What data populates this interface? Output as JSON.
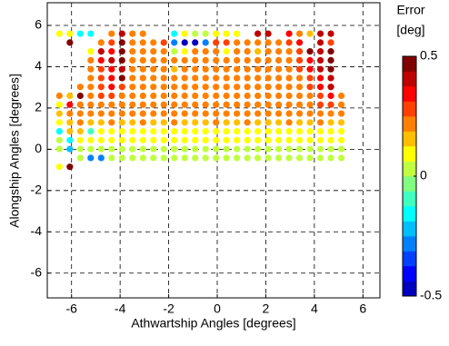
{
  "chart_data": {
    "type": "scatter",
    "x_label": "Athwartship Angles [degrees]",
    "y_label": "Alongship Angles [degrees]",
    "xlim": [
      -7,
      6.7
    ],
    "ylim": [
      -7.2,
      7.1
    ],
    "xticks": [
      -6,
      -4,
      -2,
      0,
      2,
      4,
      6
    ],
    "yticks": [
      -6,
      -4,
      -2,
      0,
      2,
      4,
      6
    ],
    "grid": true,
    "colorbar_title": "Error",
    "colorbar_unit": "[deg]",
    "clim": [
      -0.5,
      0.5
    ],
    "cticks": [
      -0.5,
      0,
      0.5
    ],
    "colormap": [
      "#0000bf",
      "#0000ff",
      "#0040ff",
      "#0080ff",
      "#00bfff",
      "#00ffff",
      "#40ffbf",
      "#80ff80",
      "#bfff40",
      "#ffff00",
      "#ffbf00",
      "#ff8000",
      "#ff4000",
      "#ff0000",
      "#bf0000",
      "#800000"
    ],
    "x": [
      -6.5,
      -6.07,
      -5.64,
      -5.21,
      -4.78,
      -4.35,
      -3.92,
      -3.49,
      -3.06,
      -2.63,
      -2.2,
      -1.77,
      -1.34,
      -0.91,
      -0.48,
      -0.05,
      0.38,
      0.81,
      1.24,
      1.67,
      2.1,
      2.53,
      2.96,
      3.39,
      3.82,
      4.25,
      4.68,
      5.11
    ],
    "series": [
      {
        "y": 5.6,
        "values": [
          0.1,
          0.1,
          -0.15,
          -0.15,
          null,
          0.2,
          0.4,
          0.2,
          0.2,
          null,
          null,
          -0.15,
          0.1,
          0.05,
          0.05,
          0.1,
          0.1,
          0.1,
          null,
          0.4,
          0.4,
          null,
          0.35,
          0.2,
          0.15,
          0.4,
          0.4,
          null
        ]
      },
      {
        "y": 5.17,
        "values": [
          null,
          0.45,
          null,
          null,
          0.2,
          0.3,
          0.45,
          0.2,
          0.2,
          0.2,
          0.3,
          -0.3,
          -0.45,
          -0.45,
          -0.3,
          0.3,
          0.3,
          0.2,
          0.2,
          0.2,
          0.2,
          0.2,
          0.3,
          0.35,
          null,
          0.4,
          0.3,
          null
        ]
      },
      {
        "y": 4.74,
        "values": [
          null,
          null,
          null,
          0.1,
          0.4,
          0.35,
          0.45,
          0.2,
          0.2,
          0.2,
          0.2,
          0.05,
          0.1,
          0.2,
          0.2,
          0.2,
          0.1,
          0.2,
          0.2,
          0.15,
          0.2,
          0.2,
          0.2,
          0.3,
          0.45,
          0.4,
          0.45,
          null
        ]
      },
      {
        "y": 4.31,
        "values": [
          null,
          null,
          null,
          0.2,
          0.35,
          0.4,
          0.45,
          0.2,
          0.2,
          0.2,
          0.2,
          0.2,
          0.2,
          0.2,
          0.2,
          0.2,
          0.2,
          0.2,
          0.2,
          0.2,
          0.2,
          0.2,
          0.2,
          0.3,
          0.35,
          0.4,
          0.45,
          null
        ]
      },
      {
        "y": 3.88,
        "values": [
          null,
          null,
          null,
          0.2,
          0.3,
          0.35,
          0.4,
          0.2,
          0.2,
          0.2,
          0.2,
          0.15,
          0.2,
          0.2,
          0.2,
          0.2,
          0.2,
          0.2,
          0.2,
          0.2,
          0.2,
          0.2,
          0.2,
          0.3,
          0.35,
          0.4,
          0.45,
          null
        ]
      },
      {
        "y": 3.45,
        "values": [
          null,
          null,
          null,
          0.2,
          0.3,
          0.35,
          0.45,
          0.2,
          0.2,
          0.2,
          0.2,
          0.2,
          0.2,
          0.2,
          0.2,
          0.2,
          0.2,
          0.2,
          0.2,
          0.2,
          0.2,
          0.2,
          0.2,
          0.2,
          0.3,
          0.35,
          0.4,
          null
        ]
      },
      {
        "y": 3.02,
        "values": [
          null,
          null,
          0.2,
          0.2,
          0.3,
          0.35,
          0.3,
          0.2,
          0.2,
          0.2,
          0.2,
          0.2,
          0.2,
          0.2,
          0.2,
          0.2,
          0.2,
          0.2,
          0.2,
          0.2,
          0.2,
          0.2,
          0.2,
          0.2,
          0.3,
          0.35,
          0.4,
          null
        ]
      },
      {
        "y": 2.59,
        "values": [
          0.2,
          0.15,
          0.45,
          0.2,
          0.3,
          0.3,
          0.2,
          0.2,
          0.2,
          0.2,
          0.2,
          0.2,
          0.2,
          0.2,
          0.2,
          0.2,
          0.2,
          0.2,
          0.2,
          0.2,
          0.2,
          0.2,
          0.2,
          0.2,
          0.2,
          0.3,
          0.35,
          0.2
        ]
      },
      {
        "y": 2.16,
        "values": [
          0.1,
          0.35,
          0.2,
          0.2,
          0.2,
          0.2,
          0.2,
          0.2,
          0.2,
          0.2,
          0.2,
          0.2,
          0.2,
          0.2,
          0.2,
          0.2,
          0.2,
          0.2,
          0.2,
          0.2,
          0.2,
          0.2,
          0.2,
          0.2,
          0.2,
          0.3,
          0.3,
          0.2
        ]
      },
      {
        "y": 1.73,
        "values": [
          0.15,
          0.2,
          0.2,
          0.2,
          0.2,
          0.2,
          0.2,
          0.2,
          0.2,
          0.2,
          0.2,
          0.2,
          0.2,
          0.2,
          0.2,
          0.2,
          0.2,
          0.2,
          0.2,
          0.2,
          0.2,
          0.2,
          0.2,
          0.2,
          0.2,
          0.2,
          0.2,
          0.2
        ]
      },
      {
        "y": 1.3,
        "values": [
          0.1,
          0.15,
          0.2,
          0.15,
          0.15,
          0.2,
          0.15,
          0.15,
          0.2,
          0.15,
          0.15,
          0.2,
          0.15,
          0.15,
          0.15,
          0.2,
          0.15,
          0.15,
          0.2,
          0.15,
          0.15,
          0.15,
          0.2,
          0.15,
          0.15,
          0.2,
          0.15,
          0.15
        ]
      },
      {
        "y": 0.87,
        "values": [
          -0.15,
          0.15,
          0.15,
          -0.1,
          0.1,
          0.1,
          0.1,
          0.1,
          0.1,
          0.1,
          0.1,
          0.1,
          0.1,
          0.1,
          0.1,
          0.1,
          0.1,
          0.1,
          0.1,
          0.1,
          0.1,
          0.1,
          0.1,
          0.1,
          0.1,
          0.1,
          0.1,
          0.1
        ]
      },
      {
        "y": 0.44,
        "values": [
          0.05,
          -0.15,
          0.1,
          0.1,
          0.1,
          0.1,
          0.1,
          0.1,
          0.1,
          0.1,
          0.1,
          0.1,
          0.1,
          0.1,
          0.1,
          0.1,
          0.1,
          0.1,
          0.1,
          0.1,
          0.1,
          0.1,
          0.1,
          0.1,
          0.1,
          0.1,
          0.1,
          0.1
        ]
      },
      {
        "y": 0.01,
        "values": [
          0.05,
          -0.25,
          0.05,
          0.05,
          0.05,
          0.05,
          0,
          0.05,
          0.05,
          0.05,
          0,
          0.05,
          0.05,
          0.05,
          0.05,
          0,
          0.05,
          0.05,
          0.05,
          0.05,
          0,
          0.05,
          0.05,
          0.05,
          0.05,
          0.05,
          0.05,
          0.05
        ]
      },
      {
        "y": -0.42,
        "values": [
          null,
          null,
          0.05,
          -0.3,
          -0.3,
          0.05,
          0,
          0.05,
          0,
          0,
          0,
          0,
          0,
          0,
          0,
          0,
          0,
          0,
          0,
          0,
          0,
          0,
          0,
          0,
          0,
          0,
          0,
          0.05
        ]
      },
      {
        "y": -0.85,
        "values": [
          0.1,
          0.45,
          null,
          null,
          null,
          null,
          null,
          null,
          null,
          null,
          null,
          null,
          null,
          null,
          null,
          null,
          null,
          null,
          null,
          null,
          null,
          null,
          null,
          null,
          null,
          null,
          null,
          null
        ]
      }
    ]
  }
}
